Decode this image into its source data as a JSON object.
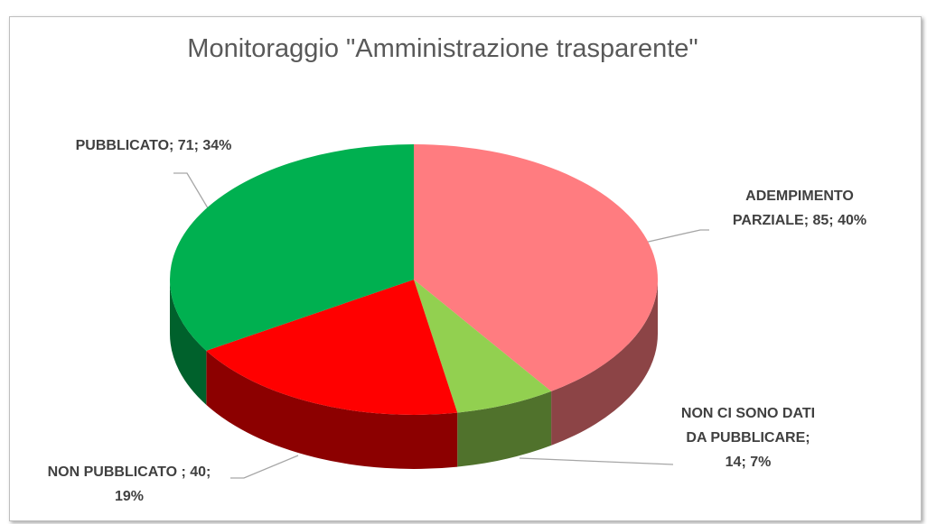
{
  "chart_data": {
    "type": "pie",
    "title": "Monitoraggio \"Amministrazione trasparente\"",
    "categories": [
      "ADEMPIMENTO PARZIALE",
      "NON CI SONO DATI DA PUBBLICARE",
      "NON PUBBLICATO",
      "PUBBLICATO"
    ],
    "values": [
      85,
      14,
      40,
      71
    ],
    "value_labels": [
      "ADEMPIMENTO PARZIALE; 85; 40%",
      "NON CI SONO DATI DA PUBBLICARE; 14; 7%",
      "NON PUBBLICATO ; 40; 19%",
      "PUBBLICATO; 71; 34%"
    ],
    "colors": [
      "#ff7c80",
      "#92d050",
      "#ff0000",
      "#00b050"
    ],
    "depth_3d": true
  }
}
